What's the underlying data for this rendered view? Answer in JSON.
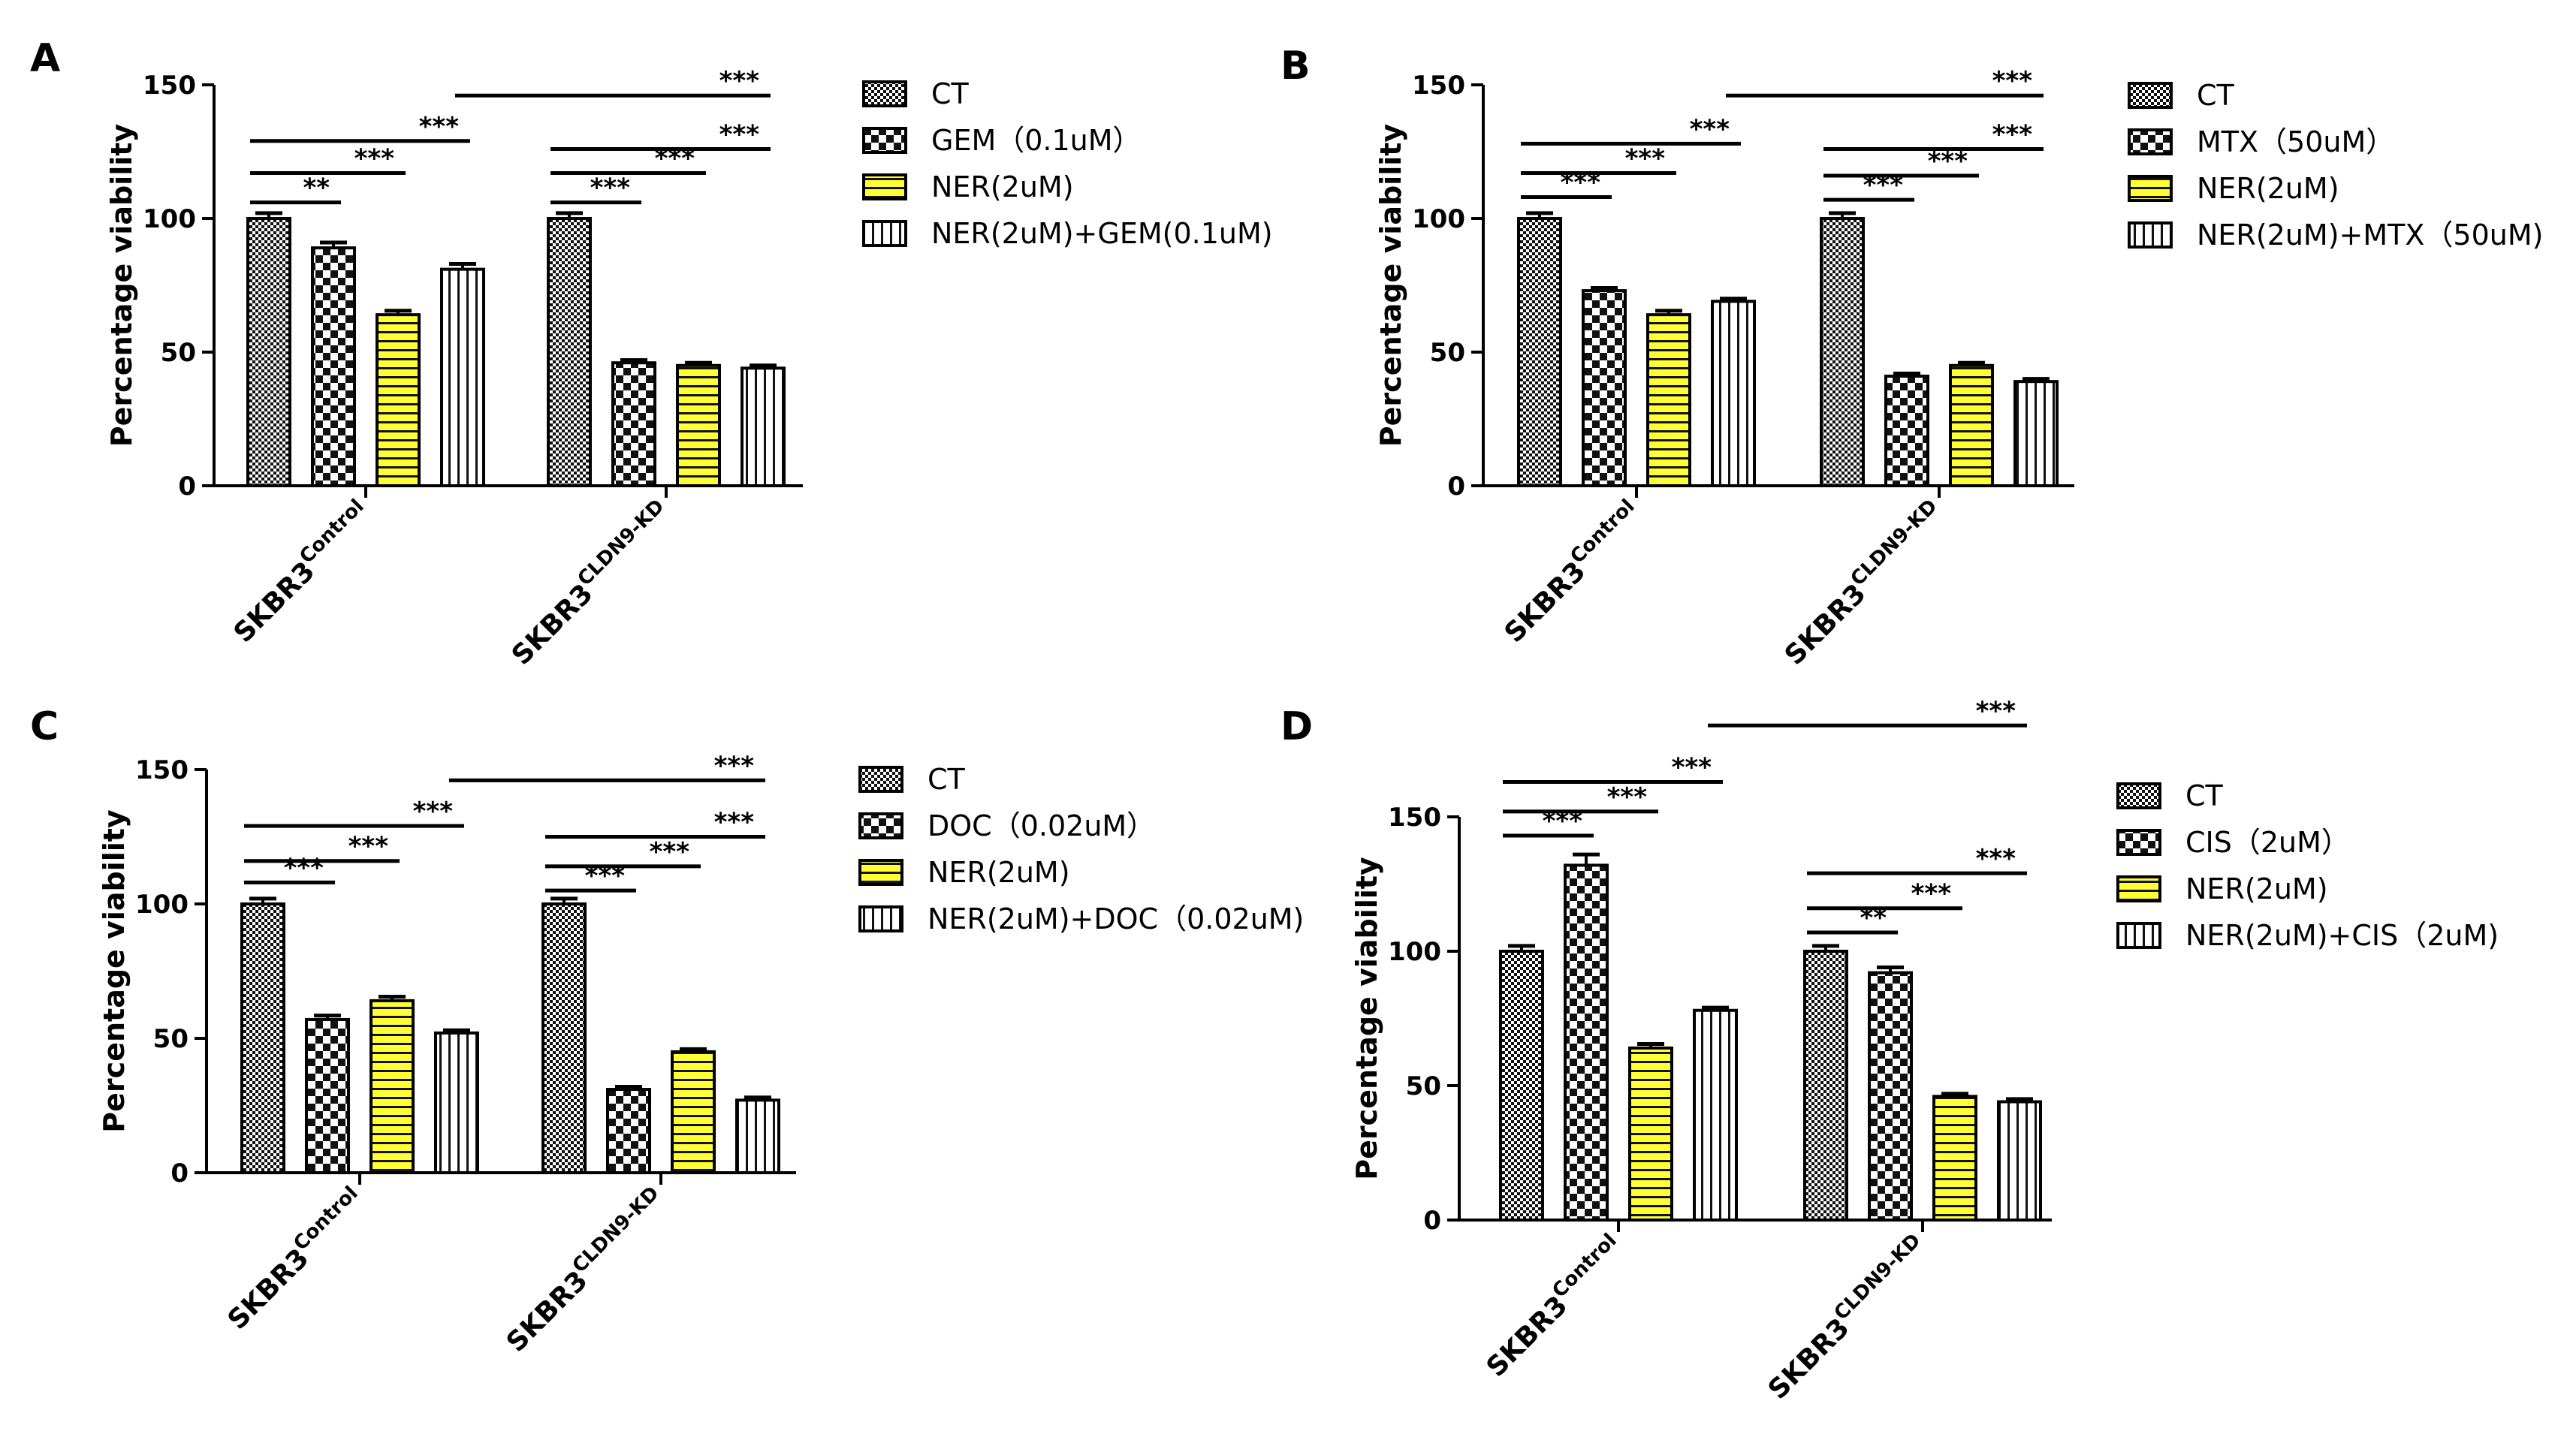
{
  "styles": [
    {
      "name": "dense-check",
      "fill": "#ffffff"
    },
    {
      "name": "large-check",
      "fill": "#ffffff"
    },
    {
      "name": "yellow-horizontal-stripes",
      "fill": "#ffff33"
    },
    {
      "name": "vertical-stripes",
      "fill": "#ffffff"
    }
  ],
  "chart_data": [
    {
      "type": "bar",
      "panel": "A",
      "ylabel": "Percentage viability",
      "ylim": [
        0,
        150
      ],
      "yticks": [
        "0",
        "50",
        "100",
        "150"
      ],
      "categories": [
        {
          "base": "SKBR3",
          "sup": "Control"
        },
        {
          "base": "SKBR3",
          "sup": "CLDN9-KD"
        }
      ],
      "series": [
        {
          "name": "CT",
          "values": [
            100,
            100
          ],
          "errors": [
            2,
            2
          ]
        },
        {
          "name": "GEM（0.1uM）",
          "values": [
            89,
            46
          ],
          "errors": [
            2,
            1
          ]
        },
        {
          "name": "NER(2uM)",
          "values": [
            64,
            45
          ],
          "errors": [
            1.5,
            1
          ]
        },
        {
          "name": "NER(2uM)+GEM(0.1uM)",
          "values": [
            81,
            44
          ],
          "errors": [
            2,
            1
          ]
        }
      ],
      "significance": [
        {
          "group": 0,
          "from": 0,
          "to": 1,
          "label": "**",
          "y": 106
        },
        {
          "group": 0,
          "from": 0,
          "to": 2,
          "label": "***",
          "y": 117
        },
        {
          "group": 0,
          "from": 0,
          "to": 3,
          "label": "***",
          "y": 129
        },
        {
          "group": 1,
          "from": 0,
          "to": 1,
          "label": "***",
          "y": 106
        },
        {
          "group": 1,
          "from": 0,
          "to": 2,
          "label": "***",
          "y": 117
        },
        {
          "group": 1,
          "from": 0,
          "to": 3,
          "label": "***",
          "y": 126
        },
        {
          "cross": true,
          "label": "***",
          "y": 146
        }
      ]
    },
    {
      "type": "bar",
      "panel": "B",
      "ylabel": "Percentage viability",
      "ylim": [
        0,
        150
      ],
      "yticks": [
        "0",
        "50",
        "100",
        "150"
      ],
      "categories": [
        {
          "base": "SKBR3",
          "sup": "Control"
        },
        {
          "base": "SKBR3",
          "sup": "CLDN9-KD"
        }
      ],
      "series": [
        {
          "name": "CT",
          "values": [
            100,
            100
          ],
          "errors": [
            2,
            2
          ]
        },
        {
          "name": "MTX（50uM）",
          "values": [
            73,
            41
          ],
          "errors": [
            1,
            1
          ]
        },
        {
          "name": "NER(2uM)",
          "values": [
            64,
            45
          ],
          "errors": [
            1.5,
            1
          ]
        },
        {
          "name": "NER(2uM)+MTX（50uM)",
          "values": [
            69,
            39
          ],
          "errors": [
            1,
            1
          ]
        }
      ],
      "significance": [
        {
          "group": 0,
          "from": 0,
          "to": 1,
          "label": "***",
          "y": 108
        },
        {
          "group": 0,
          "from": 0,
          "to": 2,
          "label": "***",
          "y": 117
        },
        {
          "group": 0,
          "from": 0,
          "to": 3,
          "label": "***",
          "y": 128
        },
        {
          "group": 1,
          "from": 0,
          "to": 1,
          "label": "***",
          "y": 107
        },
        {
          "group": 1,
          "from": 0,
          "to": 2,
          "label": "***",
          "y": 116
        },
        {
          "group": 1,
          "from": 0,
          "to": 3,
          "label": "***",
          "y": 126
        },
        {
          "cross": true,
          "label": "***",
          "y": 146
        }
      ]
    },
    {
      "type": "bar",
      "panel": "C",
      "ylabel": "Percentage viability",
      "ylim": [
        0,
        150
      ],
      "yticks": [
        "0",
        "50",
        "100",
        "150"
      ],
      "categories": [
        {
          "base": "SKBR3",
          "sup": "Control"
        },
        {
          "base": "SKBR3",
          "sup": "CLDN9-KD"
        }
      ],
      "series": [
        {
          "name": "CT",
          "values": [
            100,
            100
          ],
          "errors": [
            2,
            2
          ]
        },
        {
          "name": "DOC（0.02uM）",
          "values": [
            57,
            31
          ],
          "errors": [
            1.5,
            1
          ]
        },
        {
          "name": "NER(2uM)",
          "values": [
            64,
            45
          ],
          "errors": [
            1.5,
            1
          ]
        },
        {
          "name": "NER(2uM)+DOC（0.02uM)",
          "values": [
            52,
            27
          ],
          "errors": [
            1,
            1
          ]
        }
      ],
      "significance": [
        {
          "group": 0,
          "from": 0,
          "to": 1,
          "label": "***",
          "y": 108
        },
        {
          "group": 0,
          "from": 0,
          "to": 2,
          "label": "***",
          "y": 116
        },
        {
          "group": 0,
          "from": 0,
          "to": 3,
          "label": "***",
          "y": 129
        },
        {
          "group": 1,
          "from": 0,
          "to": 1,
          "label": "***",
          "y": 105
        },
        {
          "group": 1,
          "from": 0,
          "to": 2,
          "label": "***",
          "y": 114
        },
        {
          "group": 1,
          "from": 0,
          "to": 3,
          "label": "***",
          "y": 125
        },
        {
          "cross": true,
          "label": "***",
          "y": 146
        }
      ]
    },
    {
      "type": "bar",
      "panel": "D",
      "ylabel": "Percentage viability",
      "ylim": [
        0,
        150
      ],
      "yticks": [
        "0",
        "50",
        "100",
        "150"
      ],
      "categories": [
        {
          "base": "SKBR3",
          "sup": "Control"
        },
        {
          "base": "SKBR3",
          "sup": "CLDN9-KD"
        }
      ],
      "series": [
        {
          "name": "CT",
          "values": [
            100,
            100
          ],
          "errors": [
            2,
            2
          ]
        },
        {
          "name": "CIS（2uM）",
          "values": [
            132,
            92
          ],
          "errors": [
            4,
            2
          ]
        },
        {
          "name": "NER(2uM)",
          "values": [
            64,
            46
          ],
          "errors": [
            1.5,
            1
          ]
        },
        {
          "name": "NER(2uM)+CIS（2uM)",
          "values": [
            78,
            44
          ],
          "errors": [
            1,
            1
          ]
        }
      ],
      "significance": [
        {
          "group": 0,
          "from": 0,
          "to": 1,
          "label": "***",
          "y": 143
        },
        {
          "group": 0,
          "from": 0,
          "to": 2,
          "label": "***",
          "y": 152
        },
        {
          "group": 0,
          "from": 0,
          "to": 3,
          "label": "***",
          "y": 163
        },
        {
          "group": 1,
          "from": 0,
          "to": 1,
          "label": "**",
          "y": 107
        },
        {
          "group": 1,
          "from": 0,
          "to": 2,
          "label": "***",
          "y": 116
        },
        {
          "group": 1,
          "from": 0,
          "to": 3,
          "label": "***",
          "y": 129
        },
        {
          "cross": true,
          "label": "***",
          "y": 184
        }
      ]
    }
  ]
}
